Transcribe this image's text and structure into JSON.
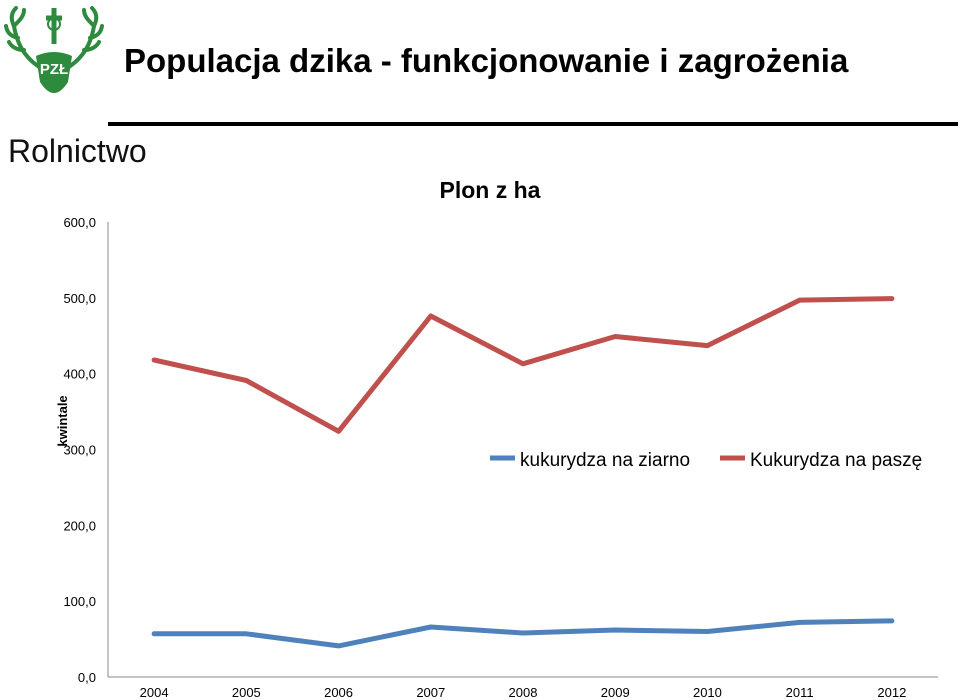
{
  "header": {
    "title": "Populacja dzika - funkcjonowanie i zagrożenia",
    "logo_text": "PZŁ",
    "brand_color": "#2e8b3d"
  },
  "section": {
    "title": "Rolnictwo"
  },
  "chart_data": {
    "type": "line",
    "title": "Plon z ha",
    "ylabel": "kwintale",
    "xlabel": "",
    "x": [
      "2004",
      "2005",
      "2006",
      "2007",
      "2008",
      "2009",
      "2010",
      "2011",
      "2012"
    ],
    "ylim": [
      0,
      600
    ],
    "yticks": [
      0,
      100,
      200,
      300,
      400,
      500,
      600
    ],
    "ytick_labels": [
      "0,0",
      "100,0",
      "200,0",
      "300,0",
      "400,0",
      "500,0",
      "600,0"
    ],
    "grid": false,
    "legend_position": "center-right",
    "series": [
      {
        "name": "kukurydza na ziarno",
        "color": "#4f81bd",
        "values": [
          57,
          57,
          41,
          66,
          58,
          62,
          60,
          72,
          74
        ]
      },
      {
        "name": "Kukurydza na paszę",
        "color": "#c0504d",
        "values": [
          418,
          391,
          324,
          476,
          413,
          449,
          437,
          497,
          499
        ]
      }
    ]
  }
}
